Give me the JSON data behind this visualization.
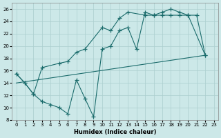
{
  "xlabel": "Humidex (Indice chaleur)",
  "bg_color": "#cce8e8",
  "grid_color": "#aacece",
  "line_color": "#1a6b6b",
  "xlim": [
    -0.5,
    23.5
  ],
  "ylim": [
    8,
    27
  ],
  "xticks": [
    0,
    1,
    2,
    3,
    4,
    5,
    6,
    7,
    8,
    9,
    10,
    11,
    12,
    13,
    14,
    15,
    16,
    17,
    18,
    19,
    20,
    21,
    22,
    23
  ],
  "yticks": [
    8,
    10,
    12,
    14,
    16,
    18,
    20,
    22,
    24,
    26
  ],
  "series": [
    {
      "x": [
        0,
        1,
        2,
        3,
        4,
        5,
        6,
        7,
        8,
        9,
        10,
        11,
        12,
        13,
        14,
        15,
        16,
        17,
        18,
        19,
        20,
        22
      ],
      "y": [
        15.5,
        14.0,
        12.2,
        11.0,
        10.5,
        10.0,
        9.0,
        14.5,
        11.5,
        8.5,
        19.5,
        20.0,
        22.5,
        23.0,
        19.5,
        25.5,
        25.0,
        25.0,
        25.0,
        25.0,
        25.0,
        18.5
      ],
      "marker": true
    },
    {
      "x": [
        0,
        1,
        2,
        3,
        5,
        6,
        7,
        8,
        10,
        11,
        12,
        13,
        15,
        16,
        17,
        18,
        19,
        20,
        21,
        22
      ],
      "y": [
        15.5,
        14.0,
        12.2,
        16.5,
        17.2,
        17.5,
        19.0,
        19.5,
        23.0,
        22.5,
        24.5,
        25.5,
        25.0,
        25.0,
        25.5,
        26.0,
        25.5,
        25.0,
        25.0,
        18.5
      ],
      "marker": true
    },
    {
      "x": [
        0,
        22
      ],
      "y": [
        14.0,
        18.5
      ],
      "marker": false
    }
  ]
}
